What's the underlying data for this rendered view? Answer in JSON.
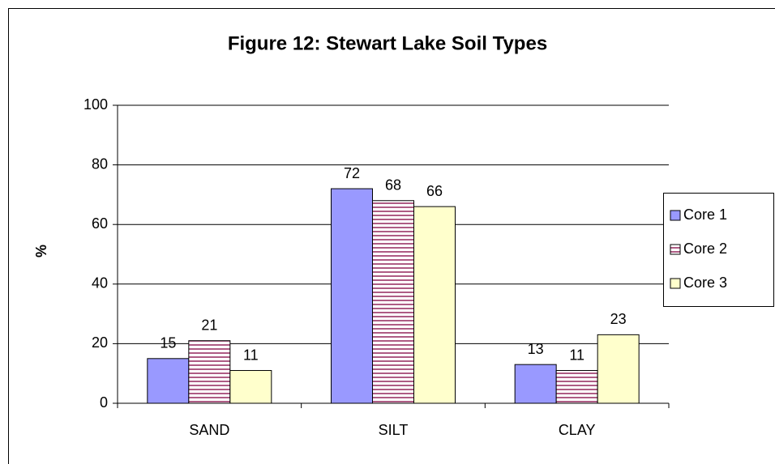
{
  "chart_data": {
    "type": "bar",
    "title": "Figure 12: Stewart Lake Soil Types",
    "y_label": "%",
    "categories": [
      "SAND",
      "SILT",
      "CLAY"
    ],
    "series": [
      {
        "name": "Core 1",
        "color": "#9999ff",
        "values": [
          15,
          72,
          13
        ]
      },
      {
        "name": "Core 2",
        "color": "#993366",
        "pattern": "horizontal-stripes",
        "values": [
          21,
          68,
          11
        ]
      },
      {
        "name": "Core 3",
        "color": "#ffffcc",
        "values": [
          11,
          66,
          23
        ]
      }
    ],
    "ylim": [
      0,
      100
    ],
    "yticks": [
      0,
      20,
      40,
      60,
      80,
      100
    ],
    "grid": true,
    "legend": "right"
  }
}
